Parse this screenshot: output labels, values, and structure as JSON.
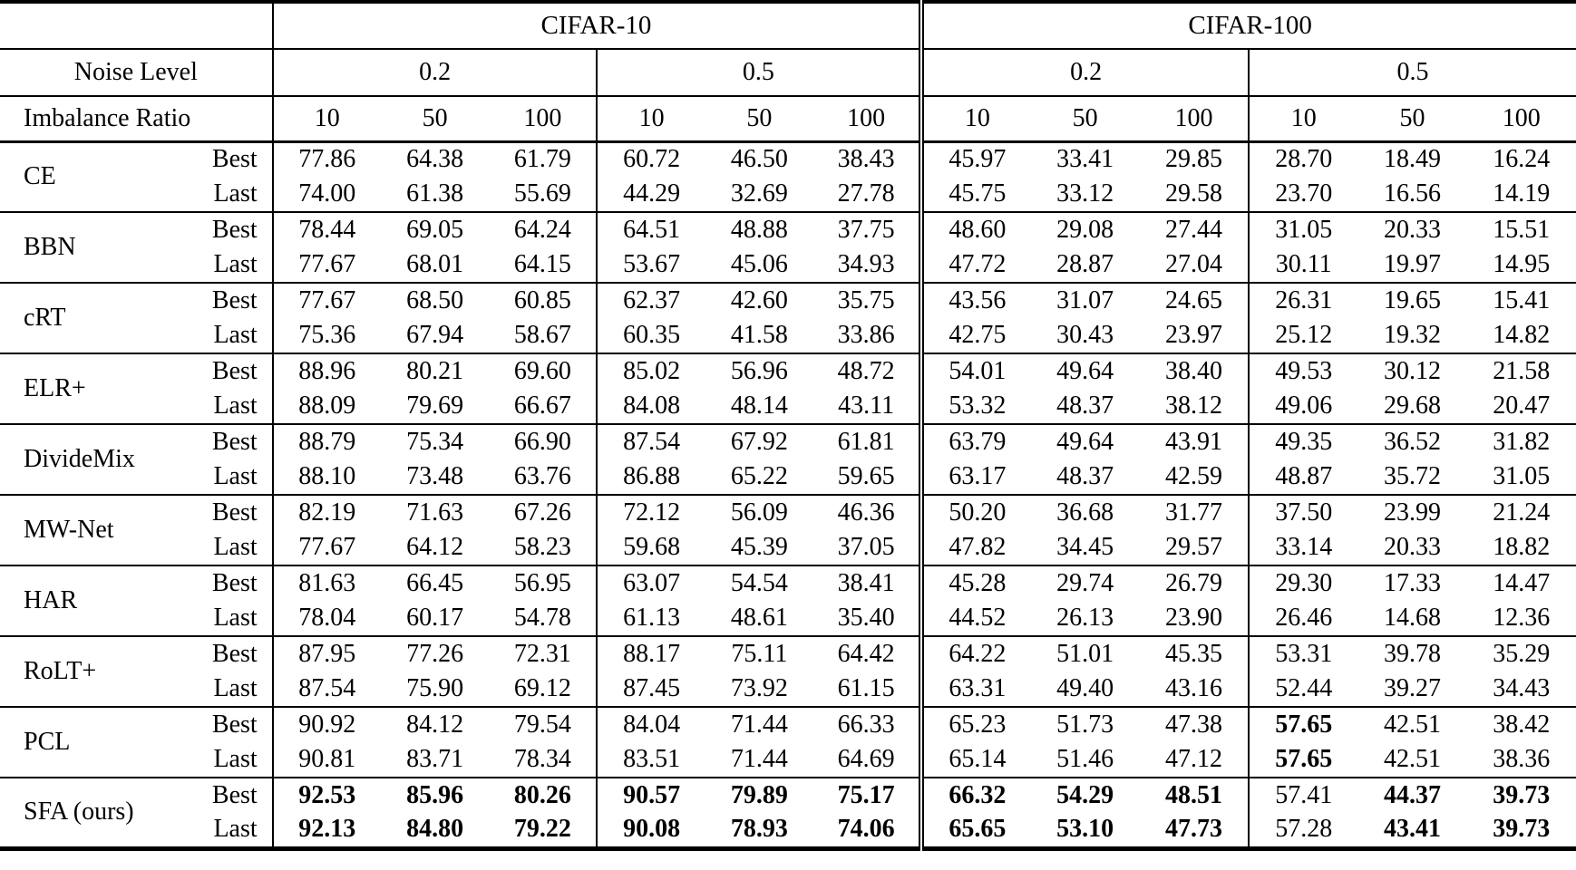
{
  "table": {
    "datasets": [
      "CIFAR-10",
      "CIFAR-100"
    ],
    "noise_label": "Noise Level",
    "imbalance_label": "Imbalance Ratio",
    "noise_levels": [
      "0.2",
      "0.5",
      "0.2",
      "0.5"
    ],
    "imbalance_ratios": [
      "10",
      "50",
      "100",
      "10",
      "50",
      "100",
      "10",
      "50",
      "100",
      "10",
      "50",
      "100"
    ],
    "row_types": [
      "Best",
      "Last"
    ],
    "methods": [
      {
        "name": "CE",
        "best": [
          "77.86",
          "64.38",
          "61.79",
          "60.72",
          "46.50",
          "38.43",
          "45.97",
          "33.41",
          "29.85",
          "28.70",
          "18.49",
          "16.24"
        ],
        "last": [
          "74.00",
          "61.38",
          "55.69",
          "44.29",
          "32.69",
          "27.78",
          "45.75",
          "33.12",
          "29.58",
          "23.70",
          "16.56",
          "14.19"
        ],
        "best_bold": [],
        "last_bold": []
      },
      {
        "name": "BBN",
        "best": [
          "78.44",
          "69.05",
          "64.24",
          "64.51",
          "48.88",
          "37.75",
          "48.60",
          "29.08",
          "27.44",
          "31.05",
          "20.33",
          "15.51"
        ],
        "last": [
          "77.67",
          "68.01",
          "64.15",
          "53.67",
          "45.06",
          "34.93",
          "47.72",
          "28.87",
          "27.04",
          "30.11",
          "19.97",
          "14.95"
        ],
        "best_bold": [],
        "last_bold": []
      },
      {
        "name": "cRT",
        "best": [
          "77.67",
          "68.50",
          "60.85",
          "62.37",
          "42.60",
          "35.75",
          "43.56",
          "31.07",
          "24.65",
          "26.31",
          "19.65",
          "15.41"
        ],
        "last": [
          "75.36",
          "67.94",
          "58.67",
          "60.35",
          "41.58",
          "33.86",
          "42.75",
          "30.43",
          "23.97",
          "25.12",
          "19.32",
          "14.82"
        ],
        "best_bold": [],
        "last_bold": []
      },
      {
        "name": "ELR+",
        "best": [
          "88.96",
          "80.21",
          "69.60",
          "85.02",
          "56.96",
          "48.72",
          "54.01",
          "49.64",
          "38.40",
          "49.53",
          "30.12",
          "21.58"
        ],
        "last": [
          "88.09",
          "79.69",
          "66.67",
          "84.08",
          "48.14",
          "43.11",
          "53.32",
          "48.37",
          "38.12",
          "49.06",
          "29.68",
          "20.47"
        ],
        "best_bold": [],
        "last_bold": []
      },
      {
        "name": "DivideMix",
        "best": [
          "88.79",
          "75.34",
          "66.90",
          "87.54",
          "67.92",
          "61.81",
          "63.79",
          "49.64",
          "43.91",
          "49.35",
          "36.52",
          "31.82"
        ],
        "last": [
          "88.10",
          "73.48",
          "63.76",
          "86.88",
          "65.22",
          "59.65",
          "63.17",
          "48.37",
          "42.59",
          "48.87",
          "35.72",
          "31.05"
        ],
        "best_bold": [],
        "last_bold": []
      },
      {
        "name": "MW-Net",
        "best": [
          "82.19",
          "71.63",
          "67.26",
          "72.12",
          "56.09",
          "46.36",
          "50.20",
          "36.68",
          "31.77",
          "37.50",
          "23.99",
          "21.24"
        ],
        "last": [
          "77.67",
          "64.12",
          "58.23",
          "59.68",
          "45.39",
          "37.05",
          "47.82",
          "34.45",
          "29.57",
          "33.14",
          "20.33",
          "18.82"
        ],
        "best_bold": [],
        "last_bold": []
      },
      {
        "name": "HAR",
        "best": [
          "81.63",
          "66.45",
          "56.95",
          "63.07",
          "54.54",
          "38.41",
          "45.28",
          "29.74",
          "26.79",
          "29.30",
          "17.33",
          "14.47"
        ],
        "last": [
          "78.04",
          "60.17",
          "54.78",
          "61.13",
          "48.61",
          "35.40",
          "44.52",
          "26.13",
          "23.90",
          "26.46",
          "14.68",
          "12.36"
        ],
        "best_bold": [],
        "last_bold": []
      },
      {
        "name": "RoLT+",
        "best": [
          "87.95",
          "77.26",
          "72.31",
          "88.17",
          "75.11",
          "64.42",
          "64.22",
          "51.01",
          "45.35",
          "53.31",
          "39.78",
          "35.29"
        ],
        "last": [
          "87.54",
          "75.90",
          "69.12",
          "87.45",
          "73.92",
          "61.15",
          "63.31",
          "49.40",
          "43.16",
          "52.44",
          "39.27",
          "34.43"
        ],
        "best_bold": [],
        "last_bold": []
      },
      {
        "name": "PCL",
        "best": [
          "90.92",
          "84.12",
          "79.54",
          "84.04",
          "71.44",
          "66.33",
          "65.23",
          "51.73",
          "47.38",
          "57.65",
          "42.51",
          "38.42"
        ],
        "last": [
          "90.81",
          "83.71",
          "78.34",
          "83.51",
          "71.44",
          "64.69",
          "65.14",
          "51.46",
          "47.12",
          "57.65",
          "42.51",
          "38.36"
        ],
        "best_bold": [
          9
        ],
        "last_bold": [
          9
        ]
      },
      {
        "name": "SFA (ours)",
        "best": [
          "92.53",
          "85.96",
          "80.26",
          "90.57",
          "79.89",
          "75.17",
          "66.32",
          "54.29",
          "48.51",
          "57.41",
          "44.37",
          "39.73"
        ],
        "last": [
          "92.13",
          "84.80",
          "79.22",
          "90.08",
          "78.93",
          "74.06",
          "65.65",
          "53.10",
          "47.73",
          "57.28",
          "43.41",
          "39.73"
        ],
        "best_bold": [
          0,
          1,
          2,
          3,
          4,
          5,
          6,
          7,
          8,
          10,
          11
        ],
        "last_bold": [
          0,
          1,
          2,
          3,
          4,
          5,
          6,
          7,
          8,
          10,
          11
        ]
      }
    ]
  }
}
